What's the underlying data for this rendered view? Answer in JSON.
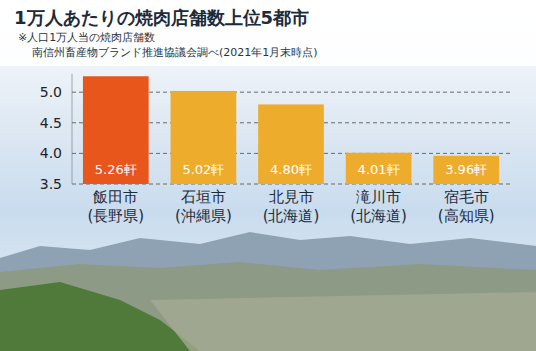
{
  "chart_data": {
    "type": "bar",
    "title": "1万人あたりの焼肉店舗数上位5都市",
    "subtitle": "※人口1万人当の焼肉店舗数",
    "source": "南信州畜産物ブランド推進協議会調べ(2021年1月末時点)",
    "categories": [
      "飯田市\n(長野県)",
      "石垣市\n(沖縄県)",
      "北見市\n(北海道)",
      "滝川市\n(北海道)",
      "宿毛市\n(高知県)"
    ],
    "values": [
      5.26,
      5.02,
      4.8,
      4.01,
      3.96
    ],
    "value_labels": [
      "5.26軒",
      "5.02軒",
      "4.80軒",
      "4.01軒",
      "3.96軒"
    ],
    "colors": [
      "#e8561c",
      "#eeac2c",
      "#eeac2c",
      "#eeac2c",
      "#eeac2c"
    ],
    "ylim": [
      3.5,
      5.3
    ],
    "yticks": [
      3.5,
      {
        "value": 4,
        "label": "4.0"
      },
      4.5,
      {
        "value": 5,
        "label": "5.0"
      }
    ],
    "grid": true,
    "data_labels": true
  }
}
